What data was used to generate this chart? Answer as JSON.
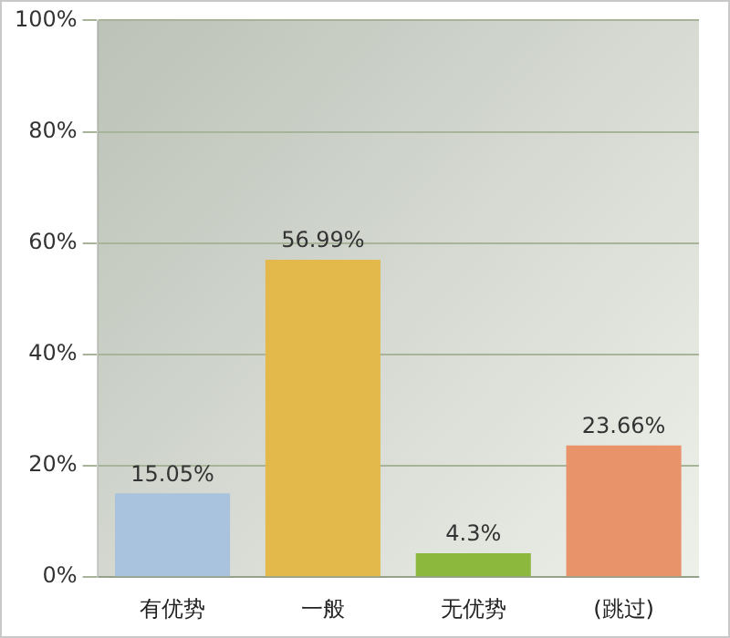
{
  "chart_data": {
    "type": "bar",
    "categories": [
      "有优势",
      "一般",
      "无优势",
      "(跳过)"
    ],
    "values": [
      15.05,
      56.99,
      4.3,
      23.66
    ],
    "colors": [
      "#a9c2de",
      "#e2b94a",
      "#8db83e",
      "#e8936a"
    ],
    "value_labels": [
      "15.05%",
      "56.99%",
      "4.3%",
      "23.66%"
    ],
    "ylim": [
      0,
      100
    ],
    "yticks": [
      {
        "value": 0,
        "label": "0%"
      },
      {
        "value": 20,
        "label": "20%"
      },
      {
        "value": 40,
        "label": "40%"
      },
      {
        "value": 60,
        "label": "60%"
      },
      {
        "value": 80,
        "label": "80%"
      },
      {
        "value": 100,
        "label": "100%"
      }
    ],
    "grid": "y"
  }
}
